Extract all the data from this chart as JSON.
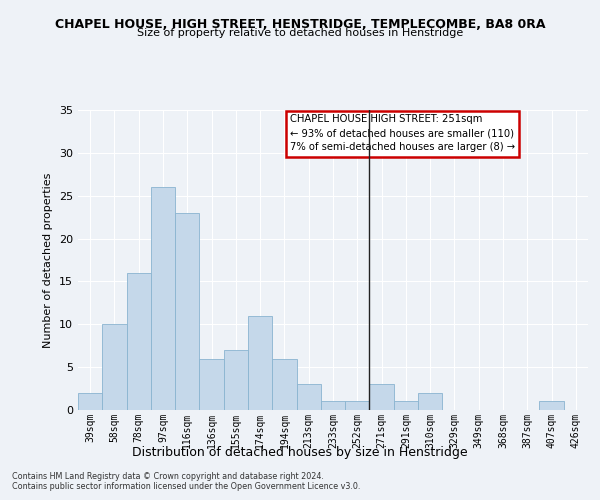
{
  "title": "CHAPEL HOUSE, HIGH STREET, HENSTRIDGE, TEMPLECOMBE, BA8 0RA",
  "subtitle": "Size of property relative to detached houses in Henstridge",
  "xlabel": "Distribution of detached houses by size in Henstridge",
  "ylabel": "Number of detached properties",
  "categories": [
    "39sqm",
    "58sqm",
    "78sqm",
    "97sqm",
    "116sqm",
    "136sqm",
    "155sqm",
    "174sqm",
    "194sqm",
    "213sqm",
    "233sqm",
    "252sqm",
    "271sqm",
    "291sqm",
    "310sqm",
    "329sqm",
    "349sqm",
    "368sqm",
    "387sqm",
    "407sqm",
    "426sqm"
  ],
  "values": [
    2,
    10,
    16,
    26,
    23,
    6,
    7,
    11,
    6,
    3,
    1,
    1,
    3,
    1,
    2,
    0,
    0,
    0,
    0,
    1,
    0
  ],
  "bar_color": "#c5d8ea",
  "bar_edge_color": "#8ab4d0",
  "vertical_line_index": 11.5,
  "annotation_title": "CHAPEL HOUSE HIGH STREET: 251sqm",
  "annotation_line1": "← 93% of detached houses are smaller (110)",
  "annotation_line2": "7% of semi-detached houses are larger (8) →",
  "annotation_box_facecolor": "#ffffff",
  "annotation_box_edgecolor": "#cc0000",
  "ylim": [
    0,
    35
  ],
  "yticks": [
    0,
    5,
    10,
    15,
    20,
    25,
    30,
    35
  ],
  "background_color": "#eef2f7",
  "grid_color": "#ffffff",
  "footer1": "Contains HM Land Registry data © Crown copyright and database right 2024.",
  "footer2": "Contains public sector information licensed under the Open Government Licence v3.0."
}
